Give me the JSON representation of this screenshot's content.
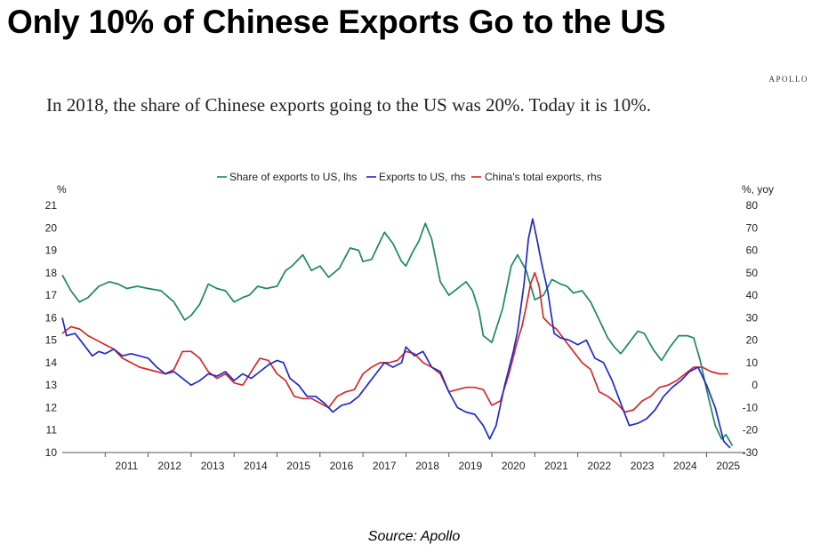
{
  "headline": "Only 10% of Chinese Exports Go to the US",
  "brand": "APOLLO",
  "subtitle": "In 2018, the share of Chinese exports going to the US was 20%. Today it is 10%.",
  "source": "Source: Apollo",
  "colors": {
    "green": "#1b8a5a",
    "blue": "#1f2ac8",
    "red": "#d42a2a"
  },
  "chart_data": {
    "type": "line",
    "ylabel_left": "%",
    "ylabel_right": "%, yoy",
    "ylim_left": [
      10,
      21
    ],
    "ylim_right": [
      -30,
      80
    ],
    "xlim": [
      2010.0,
      2025.9
    ],
    "yticks_left": [
      10,
      11,
      12,
      13,
      14,
      15,
      16,
      17,
      18,
      19,
      20,
      21
    ],
    "yticks_right": [
      -30,
      -20,
      -10,
      0,
      10,
      20,
      30,
      40,
      50,
      60,
      70,
      80
    ],
    "xtick_labels": [
      "2011",
      "2012",
      "2013",
      "2014",
      "2015",
      "2016",
      "2017",
      "2018",
      "2019",
      "2020",
      "2021",
      "2022",
      "2023",
      "2024",
      "2025"
    ],
    "legend_position": "top-center",
    "series": [
      {
        "name": "Share of exports to US, lhs",
        "axis": "left",
        "color": "#1b8a5a",
        "x": [
          2010.0,
          2010.2,
          2010.4,
          2010.6,
          2010.85,
          2011.1,
          2011.3,
          2011.5,
          2011.75,
          2012.0,
          2012.3,
          2012.6,
          2012.85,
          2013.0,
          2013.2,
          2013.4,
          2013.6,
          2013.8,
          2014.0,
          2014.2,
          2014.35,
          2014.55,
          2014.75,
          2015.0,
          2015.2,
          2015.35,
          2015.6,
          2015.8,
          2016.0,
          2016.2,
          2016.45,
          2016.7,
          2016.9,
          2017.0,
          2017.2,
          2017.35,
          2017.5,
          2017.7,
          2017.9,
          2018.0,
          2018.15,
          2018.3,
          2018.45,
          2018.6,
          2018.8,
          2019.0,
          2019.2,
          2019.4,
          2019.55,
          2019.7,
          2019.8,
          2020.0,
          2020.25,
          2020.45,
          2020.6,
          2020.8,
          2021.0,
          2021.2,
          2021.4,
          2021.6,
          2021.75,
          2021.9,
          2022.1,
          2022.3,
          2022.5,
          2022.7,
          2022.85,
          2023.0,
          2023.2,
          2023.4,
          2023.55,
          2023.75,
          2023.95,
          2024.15,
          2024.35,
          2024.55,
          2024.7,
          2024.85,
          2025.0,
          2025.2,
          2025.35,
          2025.45,
          2025.6
        ],
        "values": [
          17.9,
          17.2,
          16.7,
          16.9,
          17.4,
          17.6,
          17.5,
          17.3,
          17.4,
          17.3,
          17.2,
          16.7,
          15.9,
          16.1,
          16.6,
          17.5,
          17.3,
          17.2,
          16.7,
          16.9,
          17.0,
          17.4,
          17.3,
          17.4,
          18.1,
          18.3,
          18.8,
          18.1,
          18.3,
          17.8,
          18.2,
          19.1,
          19.0,
          18.5,
          18.6,
          19.2,
          19.8,
          19.3,
          18.5,
          18.3,
          18.9,
          19.4,
          20.2,
          19.5,
          17.6,
          17.0,
          17.3,
          17.6,
          17.2,
          16.3,
          15.2,
          14.9,
          16.4,
          18.3,
          18.8,
          18.1,
          16.8,
          17.0,
          17.7,
          17.5,
          17.4,
          17.1,
          17.2,
          16.7,
          15.9,
          15.1,
          14.7,
          14.4,
          14.9,
          15.4,
          15.3,
          14.6,
          14.1,
          14.7,
          15.2,
          15.2,
          15.1,
          14.1,
          12.8,
          11.2,
          10.6,
          10.8,
          10.3
        ]
      },
      {
        "name": "Exports to US, rhs",
        "axis": "right",
        "color": "#1f2ac8",
        "x": [
          2010.0,
          2010.1,
          2010.3,
          2010.5,
          2010.7,
          2010.85,
          2011.0,
          2011.2,
          2011.4,
          2011.6,
          2011.8,
          2012.0,
          2012.2,
          2012.4,
          2012.6,
          2012.8,
          2013.0,
          2013.2,
          2013.4,
          2013.6,
          2013.8,
          2014.0,
          2014.2,
          2014.4,
          2014.6,
          2014.8,
          2015.0,
          2015.15,
          2015.3,
          2015.5,
          2015.7,
          2015.9,
          2016.1,
          2016.3,
          2016.5,
          2016.7,
          2016.9,
          2017.1,
          2017.3,
          2017.5,
          2017.7,
          2017.9,
          2018.0,
          2018.2,
          2018.4,
          2018.6,
          2018.8,
          2019.0,
          2019.2,
          2019.4,
          2019.6,
          2019.8,
          2019.95,
          2020.1,
          2020.3,
          2020.5,
          2020.6,
          2020.75,
          2020.85,
          2020.95,
          2021.05,
          2021.15,
          2021.3,
          2021.45,
          2021.6,
          2021.8,
          2022.0,
          2022.2,
          2022.4,
          2022.6,
          2022.8,
          2023.0,
          2023.2,
          2023.4,
          2023.6,
          2023.8,
          2024.0,
          2024.2,
          2024.4,
          2024.6,
          2024.8,
          2025.0,
          2025.2,
          2025.4,
          2025.55
        ],
        "values": [
          30,
          22,
          23,
          18,
          13,
          15,
          14,
          16,
          13,
          14,
          13,
          12,
          8,
          5,
          6,
          3,
          0,
          2,
          5,
          4,
          6,
          2,
          5,
          3,
          6,
          9,
          11,
          10,
          3,
          0,
          -5,
          -5,
          -8,
          -12,
          -9,
          -8,
          -5,
          0,
          5,
          10,
          8,
          10,
          17,
          13,
          15,
          8,
          6,
          -3,
          -10,
          -12,
          -13,
          -18,
          -24,
          -18,
          0,
          15,
          24,
          45,
          65,
          74,
          65,
          55,
          42,
          23,
          21,
          20,
          18,
          20,
          12,
          10,
          2,
          -8,
          -18,
          -17,
          -15,
          -11,
          -5,
          -1,
          2,
          6,
          8,
          0,
          -10,
          -25,
          -28
        ]
      },
      {
        "name": "China's total exports, rhs",
        "axis": "right",
        "color": "#d42a2a",
        "x": [
          2010.0,
          2010.2,
          2010.4,
          2010.6,
          2010.8,
          2011.0,
          2011.2,
          2011.4,
          2011.6,
          2011.8,
          2012.0,
          2012.2,
          2012.4,
          2012.6,
          2012.8,
          2013.0,
          2013.2,
          2013.4,
          2013.6,
          2013.8,
          2014.0,
          2014.2,
          2014.4,
          2014.6,
          2014.8,
          2015.0,
          2015.2,
          2015.4,
          2015.6,
          2015.8,
          2016.0,
          2016.2,
          2016.4,
          2016.6,
          2016.8,
          2017.0,
          2017.2,
          2017.4,
          2017.6,
          2017.8,
          2018.0,
          2018.2,
          2018.4,
          2018.6,
          2018.8,
          2019.0,
          2019.2,
          2019.4,
          2019.6,
          2019.8,
          2020.0,
          2020.2,
          2020.4,
          2020.6,
          2020.7,
          2020.8,
          2020.9,
          2021.0,
          2021.1,
          2021.2,
          2021.35,
          2021.5,
          2021.7,
          2021.9,
          2022.1,
          2022.3,
          2022.5,
          2022.7,
          2022.9,
          2023.1,
          2023.3,
          2023.5,
          2023.7,
          2023.9,
          2024.1,
          2024.3,
          2024.5,
          2024.7,
          2024.9,
          2025.1,
          2025.3,
          2025.5
        ],
        "values": [
          23,
          26,
          25,
          22,
          20,
          18,
          16,
          12,
          10,
          8,
          7,
          6,
          5,
          7,
          15,
          15,
          12,
          6,
          3,
          5,
          1,
          0,
          6,
          12,
          11,
          5,
          2,
          -5,
          -6,
          -6,
          -8,
          -10,
          -5,
          -3,
          -2,
          5,
          8,
          10,
          10,
          11,
          15,
          14,
          10,
          8,
          5,
          -3,
          -2,
          -1,
          -1,
          -2,
          -9,
          -7,
          5,
          20,
          26,
          35,
          45,
          50,
          44,
          30,
          27,
          25,
          20,
          15,
          10,
          7,
          -3,
          -5,
          -8,
          -12,
          -11,
          -7,
          -5,
          -1,
          0,
          2,
          5,
          8,
          8,
          6,
          5,
          5
        ]
      }
    ]
  }
}
